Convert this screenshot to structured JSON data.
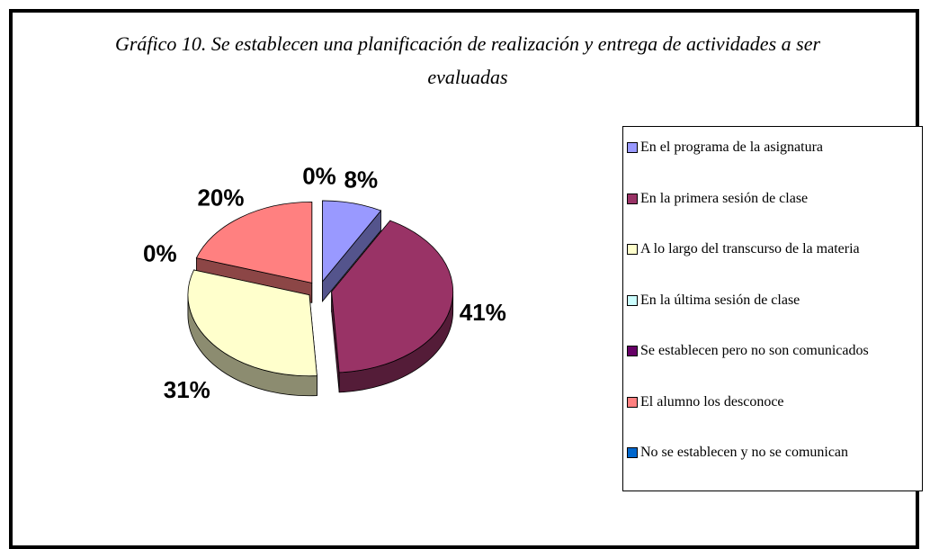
{
  "chart_data": {
    "type": "pie",
    "title": "Gráfico 10. Se establecen una planificación de realización y entrega de actividades a ser evaluadas",
    "categories": [
      "En el programa de la asignatura",
      "En la primera sesión de clase",
      "A lo largo del transcurso de la materia",
      "En la última sesión de clase",
      "Se establecen pero no son comunicados",
      "El alumno los desconoce",
      "No se establecen y no se comunican"
    ],
    "values": [
      8,
      41,
      31,
      0,
      0,
      20,
      0
    ],
    "value_labels": [
      "8%",
      "41%",
      "31%",
      "0%",
      null,
      "20%",
      "0%"
    ],
    "colors": [
      "#9999ff",
      "#993366",
      "#ffffcc",
      "#ccffff",
      "#660066",
      "#ff8080",
      "#0066cc"
    ],
    "legend": "right"
  }
}
